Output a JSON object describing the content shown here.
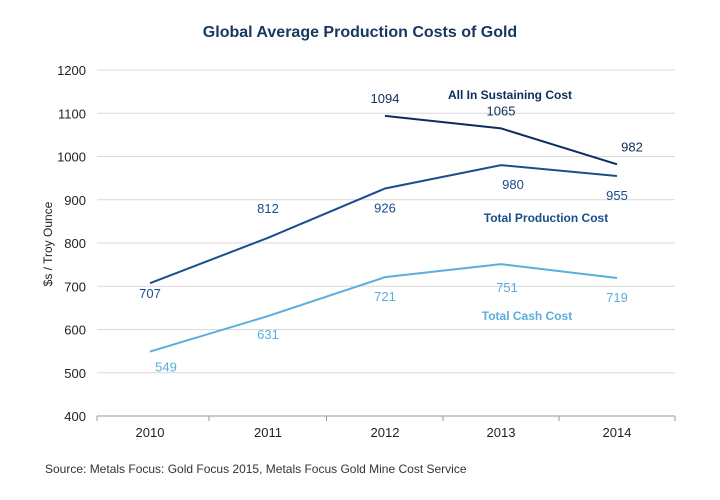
{
  "chart_data": {
    "type": "line",
    "title": "Global Average Production Costs of Gold",
    "ylabel": "$s / Troy Ounce",
    "xlabel": "",
    "categories": [
      "2010",
      "2011",
      "2012",
      "2013",
      "2014"
    ],
    "ylim": [
      400,
      1200
    ],
    "yticks": [
      400,
      500,
      600,
      700,
      800,
      900,
      1000,
      1100,
      1200
    ],
    "grid": "horizontal",
    "series": [
      {
        "name": "All In Sustaining Cost",
        "values": [
          null,
          null,
          1094,
          1065,
          982
        ],
        "labels": [
          null,
          null,
          "1094",
          "1065",
          "982"
        ],
        "color": "#0d2d5a"
      },
      {
        "name": "Total Production Cost",
        "values": [
          707,
          812,
          926,
          980,
          955
        ],
        "labels": [
          "707",
          "812",
          "926",
          "980",
          "955"
        ],
        "color": "#1a4e8c"
      },
      {
        "name": "Total Cash Cost",
        "values": [
          549,
          631,
          721,
          751,
          719
        ],
        "labels": [
          "549",
          "631",
          "721",
          "751",
          "719"
        ],
        "color": "#5aaedc"
      }
    ],
    "source": "Source: Metals Focus: Gold Focus 2015, Metals Focus Gold Mine Cost Service"
  },
  "colors": {
    "title": "#17375e",
    "grid": "#d9d9d9",
    "axis": "#999999"
  }
}
